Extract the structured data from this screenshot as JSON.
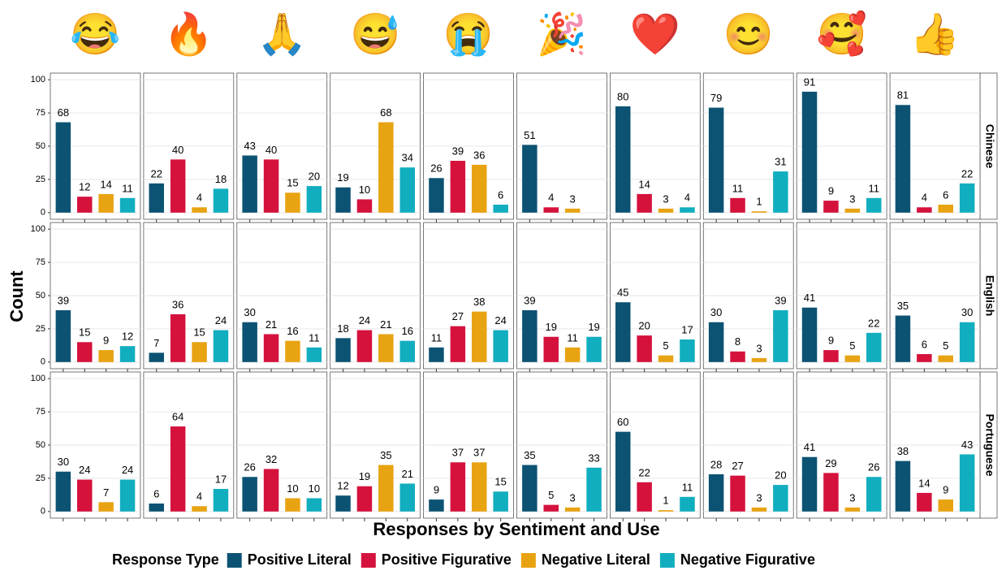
{
  "chart_data": {
    "type": "bar",
    "xlabel": "Responses by Sentiment and Use",
    "ylabel": "Count",
    "legend_title": "Response Type",
    "legend_position": "bottom",
    "grid": true,
    "columns": [
      "😂",
      "🔥",
      "🙏",
      "😅",
      "😭",
      "🎉",
      "❤️",
      "😊",
      "🥰",
      "👍"
    ],
    "rows": [
      "Chinese",
      "English",
      "Portuguese"
    ],
    "ylim": [
      -5,
      105
    ],
    "yticks": [
      0,
      25,
      50,
      75,
      100
    ],
    "series": [
      {
        "name": "Positive Literal",
        "color": "#0c5373",
        "values": [
          [
            68,
            22,
            43,
            19,
            26,
            51,
            80,
            79,
            91,
            81
          ],
          [
            39,
            7,
            30,
            18,
            11,
            39,
            45,
            30,
            41,
            35
          ],
          [
            30,
            6,
            26,
            12,
            9,
            35,
            60,
            28,
            41,
            38
          ]
        ]
      },
      {
        "name": "Positive Figurative",
        "color": "#d5123c",
        "values": [
          [
            12,
            40,
            40,
            10,
            39,
            4,
            14,
            11,
            9,
            4
          ],
          [
            15,
            36,
            21,
            24,
            27,
            19,
            20,
            8,
            9,
            6
          ],
          [
            24,
            64,
            32,
            19,
            37,
            5,
            22,
            27,
            29,
            14
          ]
        ]
      },
      {
        "name": "Negative Literal",
        "color": "#e8a312",
        "values": [
          [
            14,
            4,
            15,
            68,
            36,
            3,
            3,
            1,
            3,
            6
          ],
          [
            9,
            15,
            16,
            21,
            38,
            11,
            5,
            3,
            5,
            5
          ],
          [
            7,
            4,
            10,
            35,
            37,
            3,
            1,
            3,
            3,
            9
          ]
        ]
      },
      {
        "name": "Negative Figurative",
        "color": "#11aebf",
        "values": [
          [
            11,
            18,
            20,
            34,
            6,
            null,
            4,
            31,
            11,
            22
          ],
          [
            12,
            24,
            11,
            16,
            24,
            19,
            17,
            39,
            22,
            30
          ],
          [
            24,
            17,
            10,
            21,
            15,
            33,
            11,
            20,
            26,
            43
          ]
        ]
      }
    ]
  }
}
